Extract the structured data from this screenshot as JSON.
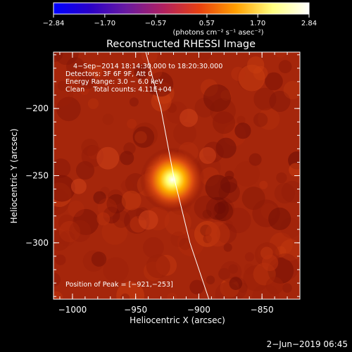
{
  "chart_data": {
    "type": "heatmap",
    "title": "Reconstructed RHESSI Image",
    "xlabel": "Heliocentric X (arcsec)",
    "ylabel": "Heliocentric Y (arcsec)",
    "xlim": [
      -1015,
      -820
    ],
    "ylim": [
      -342,
      -158
    ],
    "xticks": [
      -1000,
      -950,
      -900,
      -850
    ],
    "yticks": [
      -200,
      -250,
      -300
    ],
    "xtick_labels": [
      "−1000",
      "−950",
      "−900",
      "−850"
    ],
    "ytick_labels": [
      "−200",
      "−250",
      "−300"
    ],
    "colorbar": {
      "ticks": [
        -2.84,
        -1.7,
        -0.57,
        0.57,
        1.7,
        2.84
      ],
      "tick_labels": [
        "−2.84",
        "−1.70",
        "−0.57",
        "0.57",
        "1.70",
        "2.84"
      ],
      "unit_label": "(photons cm⁻² s⁻¹ asec⁻²)",
      "colors": [
        "#0000ff",
        "#2a00c8",
        "#6a1aa0",
        "#b02060",
        "#e84010",
        "#ffa000",
        "#ffff80",
        "#ffffff"
      ]
    },
    "annotations": [
      "4−Sep−2014 18:14:30.000 to 18:20:30.000",
      "Detectors: 3F 6F 9F, Att 0",
      "Energy Range: 3.0 − 6.0 keV",
      "Clean    Total counts: 4.11E+04"
    ],
    "peak_label": "Position of Peak = [−921,−253]",
    "peak": {
      "x": -921,
      "y": -253
    },
    "background_level": 0.42,
    "limb_curve": [
      [
        -942,
        -158
      ],
      [
        -930,
        -200
      ],
      [
        -920,
        -250
      ],
      [
        -907,
        -300
      ],
      [
        -892,
        -342
      ]
    ]
  },
  "footer": {
    "date": "2−Jun−2019 06:45"
  }
}
